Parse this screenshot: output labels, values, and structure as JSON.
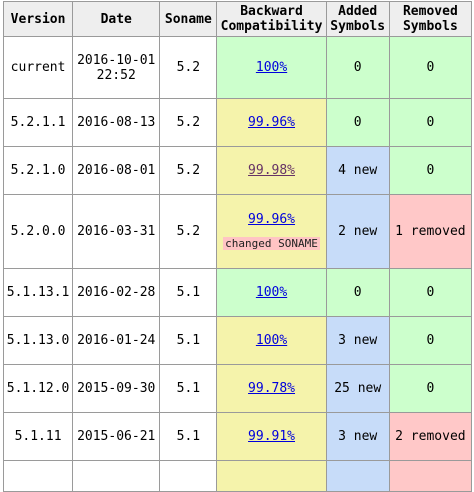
{
  "headers": {
    "version": "Version",
    "date": "Date",
    "soname": "Soname",
    "backward_line1": "Backward",
    "backward_line2": "Compatibility",
    "added_line1": "Added",
    "added_line2": "Symbols",
    "removed_line1": "Removed",
    "removed_line2": "Symbols"
  },
  "rows": [
    {
      "version": "current",
      "date_line1": "2016-10-01",
      "date_line2": "22:52",
      "soname": "5.2",
      "compat": "100%",
      "added": "0",
      "removed": "0"
    },
    {
      "version": "5.2.1.1",
      "date": "2016-08-13",
      "soname": "5.2",
      "compat": "99.96%",
      "added": "0",
      "removed": "0"
    },
    {
      "version": "5.2.1.0",
      "date": "2016-08-01",
      "soname": "5.2",
      "compat": "99.98%",
      "added": "4 new",
      "removed": "0"
    },
    {
      "version": "5.2.0.0",
      "date": "2016-03-31",
      "soname": "5.2",
      "compat": "99.96%",
      "note": "changed SONAME",
      "added": "2 new",
      "removed": "1 removed"
    },
    {
      "version": "5.1.13.1",
      "date": "2016-02-28",
      "soname": "5.1",
      "compat": "100%",
      "added": "0",
      "removed": "0"
    },
    {
      "version": "5.1.13.0",
      "date": "2016-01-24",
      "soname": "5.1",
      "compat": "100%",
      "added": "3 new",
      "removed": "0"
    },
    {
      "version": "5.1.12.0",
      "date": "2015-09-30",
      "soname": "5.1",
      "compat": "99.78%",
      "added": "25 new",
      "removed": "0"
    },
    {
      "version": "5.1.11",
      "date": "2015-06-21",
      "soname": "5.1",
      "compat": "99.91%",
      "added": "3 new",
      "removed": "2 removed"
    }
  ],
  "colors": {
    "header_bg": "#eeeeee",
    "compat_full": "#ccffcc",
    "compat_partial": "#f5f3ab",
    "added": "#c7dcf9",
    "removed": "#ffc8c8",
    "link": "#0000dd",
    "link_visited": "#663366"
  }
}
